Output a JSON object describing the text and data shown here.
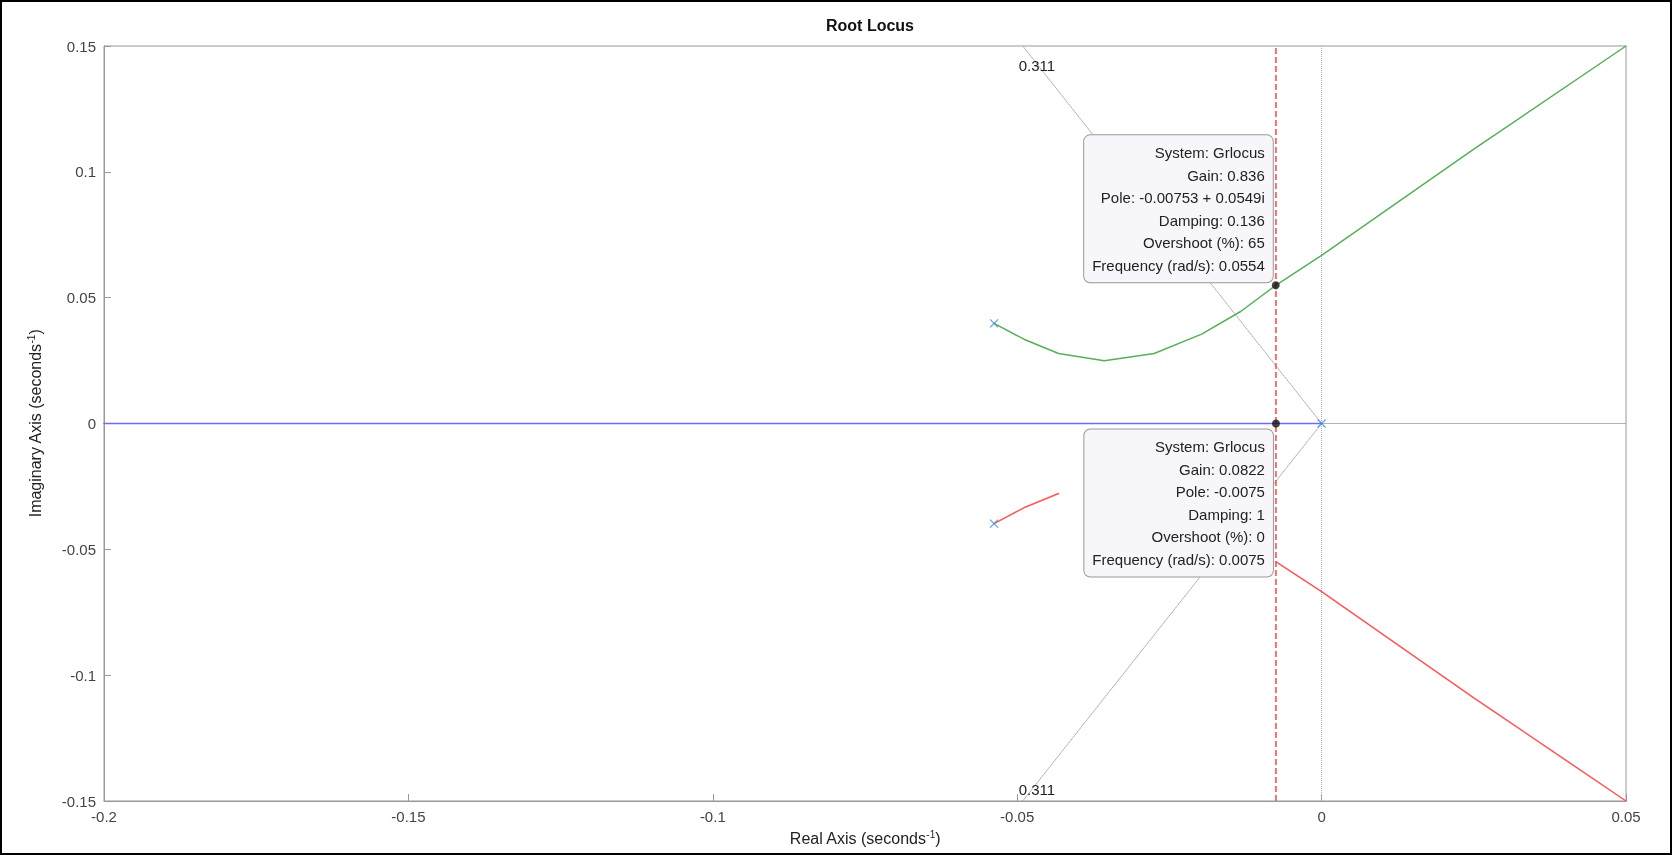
{
  "chart_data": {
    "type": "line",
    "title": "Root Locus",
    "xlabel": "Real Axis (seconds$^{-1}$)",
    "ylabel": "Imaginary Axis (seconds$^{-1}$)",
    "xlim": [
      -0.2,
      0.05
    ],
    "xticks": [
      -0.2,
      -0.15,
      -0.1,
      -0.05,
      0,
      0.05
    ],
    "ylim": [
      -0.15,
      0.15
    ],
    "yticks": [
      -0.15,
      -0.1,
      -0.05,
      0,
      0.05,
      0.1,
      0.15
    ],
    "grid": false,
    "series": [
      {
        "color": "#55b155",
        "marker": "none",
        "line_style": "solid",
        "x": [
          -0.0538,
          -0.0489,
          -0.0432,
          -0.0357,
          -0.0275,
          -0.0197,
          -0.0133,
          -0.00753,
          0,
          0.025,
          0.05
        ],
        "values": [
          0.0398,
          0.0335,
          0.0278,
          0.0249,
          0.0278,
          0.0355,
          0.0445,
          0.0549,
          0.0668,
          0.109,
          0.15
        ]
      },
      {
        "color": "#ff5555",
        "marker": "none",
        "line_style": "solid",
        "x": [
          -0.0538,
          -0.0489,
          -0.0432,
          -0.0357,
          -0.0275,
          -0.0197,
          -0.0133,
          -0.00753,
          0,
          0.025,
          0.05
        ],
        "values": [
          -0.0398,
          -0.0335,
          -0.0278,
          null,
          null,
          null,
          null,
          -0.0549,
          -0.0668,
          -0.109,
          -0.15
        ]
      },
      {
        "type": "line",
        "color": "#6b6bff",
        "marker": "none",
        "line_style": "solid",
        "x": [
          -0.2,
          0
        ],
        "values": [
          0,
          0
        ]
      },
      {
        "type": "line",
        "color": "#aaaaaa",
        "marker": "none",
        "line_style": "dotted",
        "x": [
          -0.0491,
          0,
          -0.0491
        ],
        "values": [
          0.15,
          0,
          -0.15
        ]
      },
      {
        "type": "line",
        "color": "#aaaaaa",
        "marker": "none",
        "line_style": "dotted",
        "x": [
          0,
          0.05
        ],
        "values": [
          0,
          0
        ]
      },
      {
        "type": "scatter",
        "color": "#3d8fe0",
        "marker": "cross",
        "x": [
          -0.0538,
          -0.0538,
          0
        ],
        "values": [
          0.0398,
          -0.0398,
          0
        ]
      },
      {
        "type": "scatter",
        "color": "#111111",
        "marker": "circle",
        "x": [
          -0.00753,
          -0.0075
        ],
        "values": [
          0.0549,
          0
        ]
      }
    ],
    "ref_lines": [
      {
        "axis": "x",
        "value": -0.0075,
        "color": "#ff4444",
        "line_style": "dashed"
      },
      {
        "axis": "x",
        "value": 0,
        "color": "#aaaaaa",
        "line_style": "dotted"
      }
    ],
    "annotations": [
      {
        "text": "System: Grlocus\nGain: 0.836\nPole: -0.00753 + 0.0549i\nDamping: 0.136\nOvershoot (%): 65\nFrequency (rad/s): 0.0554",
        "x": -0.00753,
        "y": 0.0549
      },
      {
        "text": "System: Grlocus\nGain: 0.0822\nPole: -0.0075\nDamping: 1\nOvershoot (%): 0\nFrequency (rad/s): 0.0075",
        "x": -0.0075,
        "y": 0
      },
      {
        "text": "0.311",
        "x": -0.0491,
        "y": 0.15
      },
      {
        "text": "0.311",
        "x": -0.0491,
        "y": -0.15
      }
    ]
  }
}
